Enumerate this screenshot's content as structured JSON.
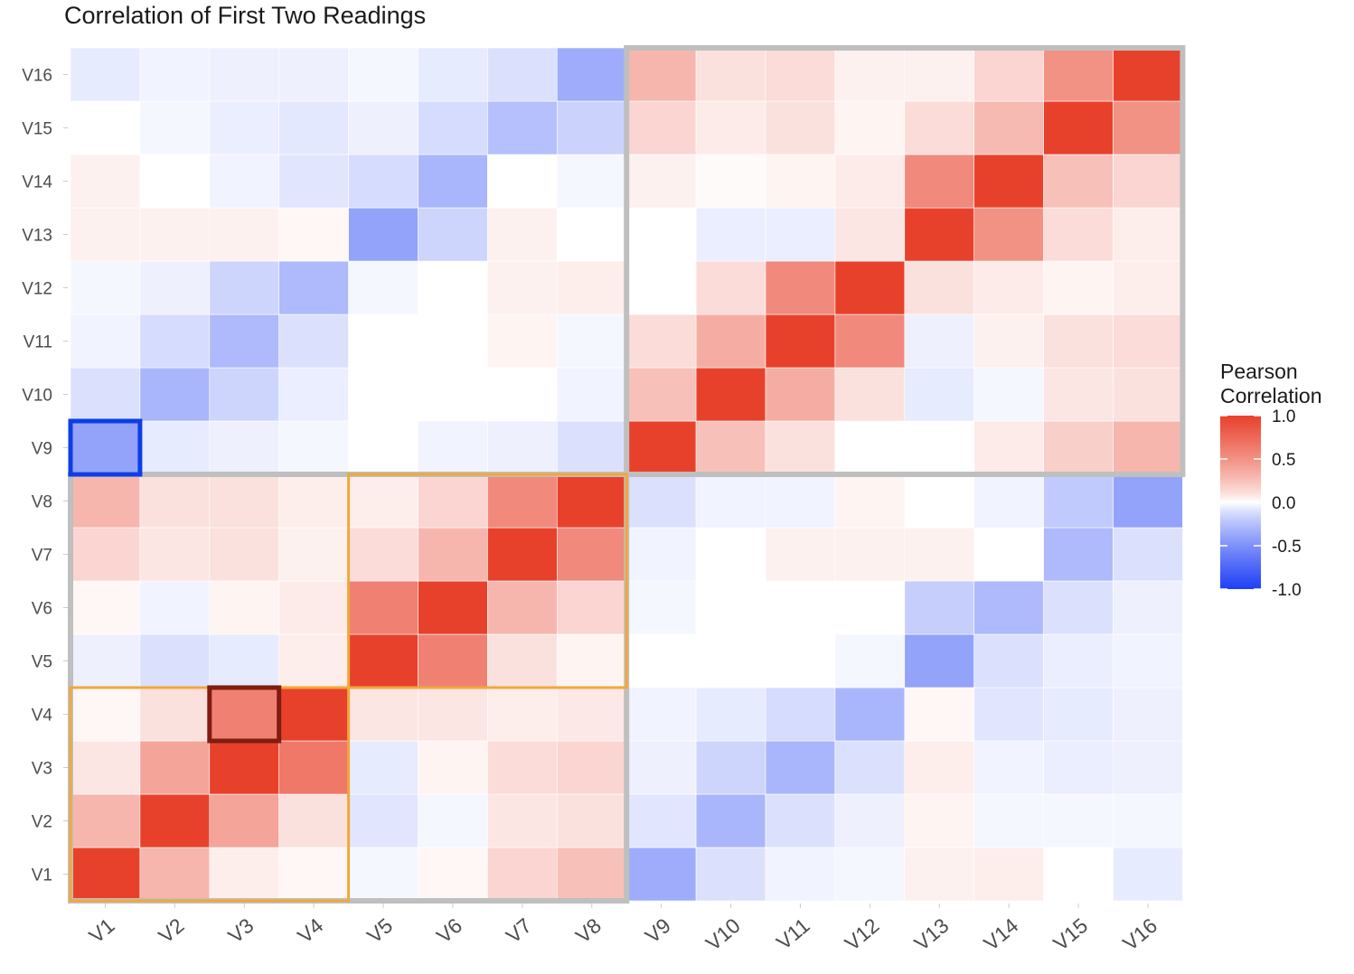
{
  "chart_data": {
    "type": "heatmap",
    "title": "Correlation of First Two Readings",
    "xlabel": "",
    "ylabel": "",
    "x_labels": [
      "V1",
      "V2",
      "V3",
      "V4",
      "V5",
      "V6",
      "V7",
      "V8",
      "V9",
      "V10",
      "V11",
      "V12",
      "V13",
      "V14",
      "V15",
      "V16"
    ],
    "y_labels": [
      "V1",
      "V2",
      "V3",
      "V4",
      "V5",
      "V6",
      "V7",
      "V8",
      "V9",
      "V10",
      "V11",
      "V12",
      "V13",
      "V14",
      "V15",
      "V16"
    ],
    "values_note_rows_bottom_to_top": true,
    "values": [
      [
        1.0,
        0.3,
        0.05,
        0.02,
        -0.02,
        0.02,
        0.15,
        0.25,
        -0.35,
        -0.1,
        -0.03,
        -0.02,
        0.04,
        0.05,
        0.0,
        -0.06
      ],
      [
        0.3,
        1.0,
        0.4,
        0.1,
        -0.08,
        -0.02,
        0.08,
        0.1,
        -0.08,
        -0.3,
        -0.1,
        -0.04,
        0.03,
        -0.02,
        -0.02,
        -0.02
      ],
      [
        0.08,
        0.4,
        1.0,
        0.65,
        -0.06,
        0.03,
        0.12,
        0.15,
        -0.04,
        -0.15,
        -0.3,
        -0.1,
        0.05,
        -0.03,
        -0.05,
        -0.04
      ],
      [
        0.02,
        0.1,
        0.6,
        1.0,
        0.08,
        0.08,
        0.05,
        0.07,
        -0.03,
        -0.06,
        -0.12,
        -0.3,
        0.02,
        -0.08,
        -0.06,
        -0.04
      ],
      [
        -0.04,
        -0.1,
        -0.06,
        0.05,
        1.0,
        0.6,
        0.1,
        0.03,
        0.0,
        0.0,
        0.0,
        -0.02,
        -0.4,
        -0.1,
        -0.05,
        -0.03
      ],
      [
        0.02,
        -0.03,
        0.03,
        0.06,
        0.6,
        1.0,
        0.3,
        0.15,
        -0.02,
        0.0,
        0.0,
        0.0,
        -0.18,
        -0.28,
        -0.1,
        -0.04
      ],
      [
        0.15,
        0.08,
        0.1,
        0.04,
        0.12,
        0.3,
        1.0,
        0.55,
        -0.03,
        0.0,
        0.04,
        0.04,
        0.04,
        0.0,
        -0.28,
        -0.1
      ],
      [
        0.3,
        0.1,
        0.1,
        0.05,
        0.05,
        0.15,
        0.55,
        1.0,
        -0.1,
        -0.03,
        -0.03,
        0.03,
        0.0,
        -0.03,
        -0.2,
        -0.4
      ],
      [
        -0.4,
        -0.06,
        -0.04,
        -0.02,
        0.0,
        -0.03,
        -0.04,
        -0.1,
        1.0,
        0.25,
        0.1,
        0.0,
        0.0,
        0.06,
        0.18,
        0.3
      ],
      [
        -0.1,
        -0.3,
        -0.15,
        -0.05,
        0.0,
        0.0,
        0.0,
        -0.03,
        0.25,
        1.0,
        0.35,
        0.1,
        -0.06,
        -0.02,
        0.08,
        0.1
      ],
      [
        -0.03,
        -0.12,
        -0.28,
        -0.1,
        0.0,
        0.0,
        0.03,
        -0.02,
        0.12,
        0.35,
        1.0,
        0.55,
        -0.04,
        0.04,
        0.1,
        0.12
      ],
      [
        -0.02,
        -0.04,
        -0.15,
        -0.28,
        -0.02,
        0.0,
        0.04,
        0.05,
        0.0,
        0.12,
        0.55,
        1.0,
        0.1,
        0.06,
        0.03,
        0.05
      ],
      [
        0.04,
        0.04,
        0.04,
        0.02,
        -0.4,
        -0.15,
        0.04,
        0.0,
        0.0,
        -0.05,
        -0.05,
        0.08,
        1.0,
        0.5,
        0.12,
        0.05
      ],
      [
        0.04,
        0.0,
        -0.03,
        -0.08,
        -0.12,
        -0.3,
        0.0,
        -0.02,
        0.04,
        0.01,
        0.03,
        0.06,
        0.55,
        1.0,
        0.25,
        0.15
      ],
      [
        0.0,
        -0.02,
        -0.05,
        -0.07,
        -0.04,
        -0.12,
        -0.25,
        -0.16,
        0.15,
        0.06,
        0.1,
        0.03,
        0.12,
        0.28,
        1.0,
        0.5
      ],
      [
        -0.06,
        -0.03,
        -0.04,
        -0.04,
        -0.02,
        -0.06,
        -0.1,
        -0.35,
        0.3,
        0.1,
        0.12,
        0.04,
        0.04,
        0.15,
        0.5,
        1.0
      ]
    ],
    "legend": {
      "title_line1": "Pearson",
      "title_line2": "Correlation",
      "ticks": [
        "1.0",
        "0.5",
        "0.0",
        "-0.5",
        "-1.0"
      ],
      "range": [
        -1.0,
        1.0
      ],
      "placement": "right"
    },
    "colors": {
      "high": "#e8412b",
      "mid": "#ffffff",
      "low": "#1f3ff5",
      "grid_box_gray": "#bfbfbf",
      "orange_box": "#f0a83a",
      "dark_red_box": "#7f1d10",
      "blue_box": "#0e3ee8"
    },
    "grid": true,
    "highlight_boxes": [
      {
        "name": "gray-block-lower-left",
        "x_range": [
          "V1",
          "V8"
        ],
        "y_range": [
          "V1",
          "V8"
        ],
        "color": "gray"
      },
      {
        "name": "gray-block-upper-right",
        "x_range": [
          "V9",
          "V16"
        ],
        "y_range": [
          "V9",
          "V16"
        ],
        "color": "gray"
      },
      {
        "name": "orange-block-v1-v4",
        "x_range": [
          "V1",
          "V4"
        ],
        "y_range": [
          "V1",
          "V4"
        ],
        "color": "orange"
      },
      {
        "name": "orange-block-v5-v8",
        "x_range": [
          "V5",
          "V8"
        ],
        "y_range": [
          "V5",
          "V8"
        ],
        "color": "orange"
      },
      {
        "name": "dark-red-cell",
        "x_range": [
          "V3",
          "V3"
        ],
        "y_range": [
          "V4",
          "V4"
        ],
        "color": "dark_red"
      },
      {
        "name": "blue-cell",
        "x_range": [
          "V1",
          "V1"
        ],
        "y_range": [
          "V9",
          "V9"
        ],
        "color": "blue"
      }
    ]
  }
}
